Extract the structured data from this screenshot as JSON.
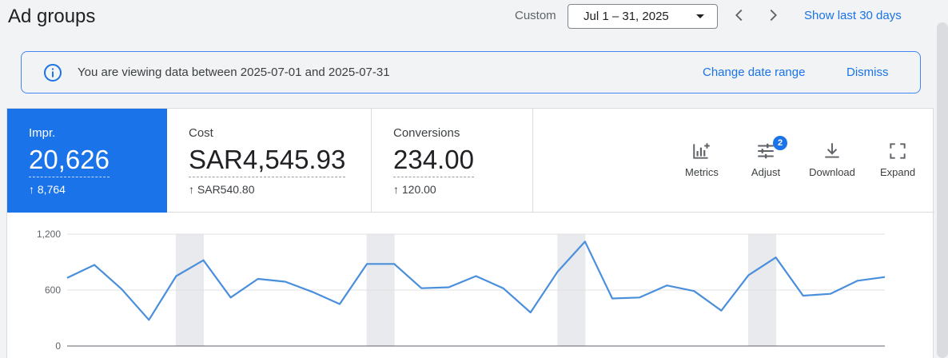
{
  "header": {
    "title": "Ad groups",
    "custom_label": "Custom",
    "date_range": "Jul 1 – 31, 2025",
    "show_last": "Show last 30 days"
  },
  "banner": {
    "text": "You are viewing data between 2025-07-01 and 2025-07-31",
    "change_date": "Change date range",
    "dismiss": "Dismiss"
  },
  "metrics": [
    {
      "label": "Impr.",
      "value": "20,626",
      "delta": "↑ 8,764",
      "selected": true
    },
    {
      "label": "Cost",
      "value": "SAR4,545.93",
      "delta": "↑ SAR540.80",
      "selected": false
    },
    {
      "label": "Conversions",
      "value": "234.00",
      "delta": "↑ 120.00",
      "selected": false
    }
  ],
  "tools": {
    "metrics": "Metrics",
    "adjust": "Adjust",
    "adjust_badge": "2",
    "download": "Download",
    "expand": "Expand"
  },
  "colors": {
    "accent": "#1a73e8",
    "line": "#4a8fdc",
    "weekend_band": "#e8eaed"
  },
  "chart_data": {
    "type": "line",
    "ylim": [
      0,
      1200
    ],
    "yticks": [
      "0",
      "600",
      "1,200"
    ],
    "x": [
      1,
      2,
      3,
      4,
      5,
      6,
      7,
      8,
      9,
      10,
      11,
      12,
      13,
      14,
      15,
      16,
      17,
      18,
      19,
      20,
      21,
      22,
      23,
      24,
      25,
      26,
      27,
      28,
      29,
      30,
      31
    ],
    "weekend_bands": [
      [
        5,
        6
      ],
      [
        12,
        13
      ],
      [
        19,
        20
      ],
      [
        26,
        27
      ]
    ],
    "series": [
      {
        "values": [
          730,
          870,
          610,
          280,
          750,
          920,
          520,
          720,
          690,
          580,
          450,
          880,
          880,
          620,
          630,
          750,
          620,
          360,
          800,
          1120,
          510,
          520,
          650,
          590,
          380,
          760,
          950,
          540,
          560,
          700,
          740
        ]
      }
    ]
  }
}
